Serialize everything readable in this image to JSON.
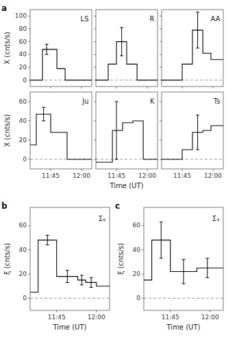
{
  "chart_data": [
    {
      "type": "step",
      "title": "a",
      "annotations": [
        "LS"
      ],
      "ylabel": "X (cnts/s)",
      "color": "black",
      "x": [
        11.583,
        11.683,
        11.683,
        11.75,
        11.8,
        11.867,
        11.867,
        12.083
      ],
      "values": [
        0,
        0,
        48,
        48,
        18,
        18,
        0,
        0
      ],
      "errorbars": [
        {
          "x": 11.717,
          "y": 48,
          "yerr": 8
        }
      ],
      "hline": 0,
      "xlim": [
        11.583,
        12.083
      ],
      "xticks": [
        11.75,
        12.0
      ],
      "ylim": [
        -10,
        110
      ],
      "yticks": [
        0,
        20,
        40,
        60,
        80,
        100
      ],
      "tick_labels": "y"
    },
    {
      "type": "step",
      "annotations": [
        "R"
      ],
      "color": "black",
      "x": [
        11.583,
        11.683,
        11.683,
        11.75,
        11.75,
        11.833,
        11.833,
        11.917,
        11.917,
        12.083
      ],
      "values": [
        0,
        0,
        25,
        25,
        60,
        60,
        25,
        25,
        0,
        0
      ],
      "errorbars": [
        {
          "x": 11.792,
          "y": 60,
          "yerr": 22
        }
      ],
      "hline": 0,
      "xlim": [
        11.583,
        12.083
      ],
      "xticks": [
        11.75,
        12.0
      ],
      "ylim": [
        -10,
        110
      ],
      "yticks": [
        0,
        20,
        40,
        60,
        80,
        100
      ],
      "tick_labels": false
    },
    {
      "type": "step",
      "annotations": [
        "AA"
      ],
      "color": "black",
      "x": [
        11.583,
        11.75,
        11.75,
        11.833,
        11.833,
        11.917,
        11.917,
        11.983,
        11.983,
        12.083
      ],
      "values": [
        0,
        0,
        25,
        25,
        78,
        78,
        42,
        42,
        32,
        32
      ],
      "errorbars": [
        {
          "x": 11.875,
          "y": 78,
          "yerr": 28
        }
      ],
      "hline": 0,
      "xlim": [
        11.583,
        12.083
      ],
      "xticks": [
        11.75,
        12.0
      ],
      "ylim": [
        -10,
        110
      ],
      "yticks": [
        0,
        20,
        40,
        60,
        80,
        100
      ],
      "tick_labels": false
    },
    {
      "type": "step",
      "annotations": [
        "Ju"
      ],
      "ylabel": "X (cnts/s)",
      "color": "black",
      "x": [
        11.583,
        11.633,
        11.633,
        11.75,
        11.75,
        11.883,
        11.883,
        12.083
      ],
      "values": [
        15,
        15,
        47,
        47,
        28,
        28,
        0,
        0
      ],
      "errorbars": [
        {
          "x": 11.692,
          "y": 47,
          "yerr": 7
        }
      ],
      "hline": 0,
      "xlim": [
        11.583,
        12.083
      ],
      "xticks": [
        {
          "value": 11.75,
          "label": "11:45"
        },
        {
          "value": 12.0,
          "label": "12:00"
        }
      ],
      "ylim": [
        -10,
        70
      ],
      "yticks": [
        0,
        20,
        40,
        60
      ]
    },
    {
      "type": "step",
      "annotations": [
        "K"
      ],
      "xlabel": "Time (UT)",
      "color": "black",
      "x": [
        11.583,
        11.717,
        11.717,
        11.8,
        11.8,
        11.883,
        11.883,
        11.967,
        11.967,
        12.083
      ],
      "values": [
        -3,
        -3,
        30,
        30,
        38,
        38,
        40,
        40,
        0,
        0
      ],
      "errorbars": [
        {
          "x": 11.75,
          "y": 30,
          "yerr": 30
        }
      ],
      "hline": 0,
      "xlim": [
        11.583,
        12.083
      ],
      "xticks": [
        {
          "value": 11.75,
          "label": "11:45"
        },
        {
          "value": 12.0,
          "label": "12:00"
        }
      ],
      "ylim": [
        -10,
        70
      ],
      "yticks": [
        0,
        20,
        40,
        60
      ],
      "tick_labels": "x"
    },
    {
      "type": "step",
      "annotations": [
        "Ts"
      ],
      "color": "black",
      "x": [
        11.583,
        11.75,
        11.75,
        11.833,
        11.833,
        11.917,
        11.917,
        11.983,
        11.983,
        12.083
      ],
      "values": [
        0,
        0,
        10,
        10,
        28,
        28,
        30,
        30,
        35,
        35
      ],
      "errorbars": [
        {
          "x": 11.875,
          "y": 28,
          "yerr": 18
        }
      ],
      "hline": 0,
      "xlim": [
        11.583,
        12.083
      ],
      "xticks": [
        {
          "value": 11.75,
          "label": "11:45"
        },
        {
          "value": 12.0,
          "label": "12:00"
        }
      ],
      "ylim": [
        -10,
        70
      ],
      "yticks": [
        0,
        20,
        40,
        60
      ],
      "tick_labels": "x"
    },
    {
      "type": "step",
      "title": "b",
      "annotations": [
        "Σ₆"
      ],
      "ylabel": "ξ (cnts/s)",
      "xlabel": "Time (UT)",
      "color": "black",
      "x": [
        11.583,
        11.633,
        11.633,
        11.75,
        11.75,
        11.883,
        11.883,
        11.933,
        11.933,
        12.0,
        12.0,
        12.083
      ],
      "values": [
        5,
        5,
        48,
        48,
        18,
        18,
        15,
        15,
        13,
        13,
        10,
        10
      ],
      "errorbars": [
        {
          "x": 11.692,
          "y": 48,
          "yerr": 4
        },
        {
          "x": 11.817,
          "y": 18,
          "yerr": 5
        },
        {
          "x": 11.908,
          "y": 15,
          "yerr": 4
        },
        {
          "x": 11.967,
          "y": 13,
          "yerr": 4
        }
      ],
      "hline": 0,
      "xlim": [
        11.583,
        12.083
      ],
      "xticks": [
        {
          "value": 11.75,
          "label": "11:45"
        },
        {
          "value": 12.0,
          "label": "12:00"
        }
      ],
      "ylim": [
        -10,
        75
      ],
      "yticks": [
        0,
        20,
        40,
        60
      ]
    },
    {
      "type": "step",
      "title": "c",
      "annotations": [
        "Σ₄"
      ],
      "ylabel": "ξ (cnts/s)",
      "xlabel": "Time (UT)",
      "color": "black",
      "x": [
        11.583,
        11.633,
        11.633,
        11.75,
        11.75,
        11.917,
        11.917,
        12.083
      ],
      "values": [
        15,
        15,
        48,
        48,
        22,
        22,
        25,
        25
      ],
      "errorbars": [
        {
          "x": 11.692,
          "y": 48,
          "yerr": 15
        },
        {
          "x": 11.833,
          "y": 22,
          "yerr": 10
        },
        {
          "x": 11.983,
          "y": 25,
          "yerr": 8
        }
      ],
      "hline": 0,
      "xlim": [
        11.583,
        12.083
      ],
      "xticks": [
        {
          "value": 11.75,
          "label": "11:45"
        },
        {
          "value": 12.0,
          "label": "12:00"
        }
      ],
      "ylim": [
        -10,
        75
      ],
      "yticks": [
        0,
        20,
        40,
        60
      ]
    }
  ]
}
